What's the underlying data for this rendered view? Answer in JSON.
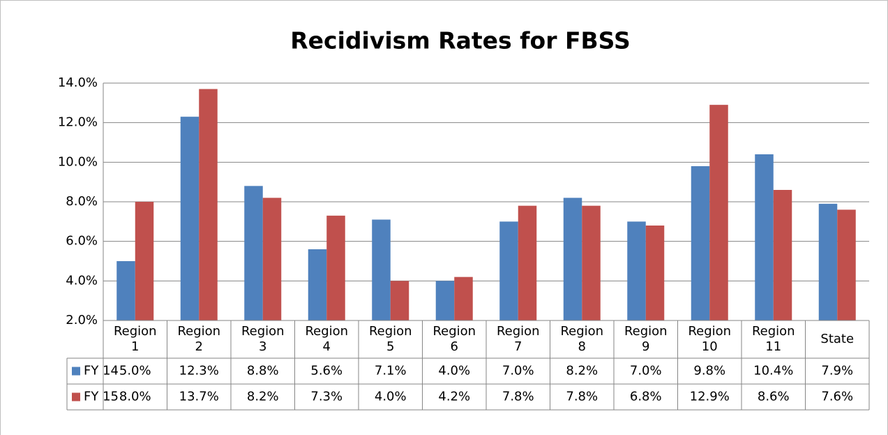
{
  "chart_data": {
    "type": "bar",
    "title": "Recidivism Rates for FBSS",
    "categories": [
      "Region 1",
      "Region 2",
      "Region 3",
      "Region 4",
      "Region 5",
      "Region 6",
      "Region 7",
      "Region 8",
      "Region 9",
      "Region 10",
      "Region 11",
      "State"
    ],
    "series": [
      {
        "name": "FY 14",
        "color": "#4f81bd",
        "values": [
          5.0,
          12.3,
          8.8,
          5.6,
          7.1,
          4.0,
          7.0,
          8.2,
          7.0,
          9.8,
          10.4,
          7.9
        ],
        "value_labels": [
          "5.0%",
          "12.3%",
          "8.8%",
          "5.6%",
          "7.1%",
          "4.0%",
          "7.0%",
          "8.2%",
          "7.0%",
          "9.8%",
          "10.4%",
          "7.9%"
        ]
      },
      {
        "name": "FY 15",
        "color": "#c0504d",
        "values": [
          8.0,
          13.7,
          8.2,
          7.3,
          4.0,
          4.2,
          7.8,
          7.8,
          6.8,
          12.9,
          8.6,
          7.6
        ],
        "value_labels": [
          "8.0%",
          "13.7%",
          "8.2%",
          "7.3%",
          "4.0%",
          "4.2%",
          "7.8%",
          "7.8%",
          "6.8%",
          "12.9%",
          "8.6%",
          "7.6%"
        ]
      }
    ],
    "ylim": [
      2,
      14
    ],
    "yticks": [
      {
        "value": 2,
        "label": "2.0%"
      },
      {
        "value": 4,
        "label": "4.0%"
      },
      {
        "value": 6,
        "label": "6.0%"
      },
      {
        "value": 8,
        "label": "8.0%"
      },
      {
        "value": 10,
        "label": "10.0%"
      },
      {
        "value": 12,
        "label": "12.0%"
      },
      {
        "value": 14,
        "label": "14.0%"
      }
    ],
    "grid": true
  }
}
